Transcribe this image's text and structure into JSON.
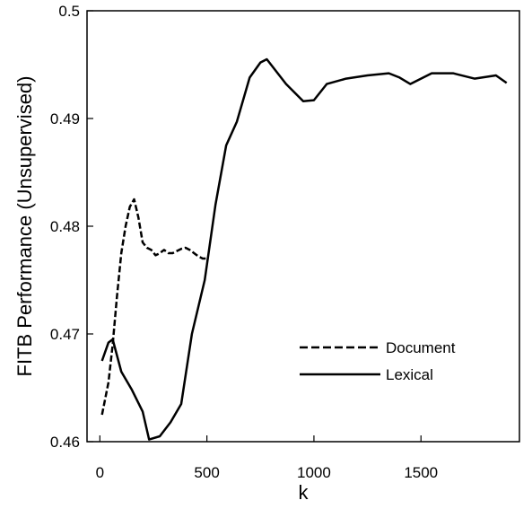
{
  "chart_data": {
    "type": "line",
    "title": "",
    "xlabel": "k",
    "ylabel": "FITB Performance (Unsupervised)",
    "xlim": [
      -60,
      1960
    ],
    "ylim": [
      0.46,
      0.5
    ],
    "x_ticks": [
      0,
      500,
      1000,
      1500
    ],
    "x_tick_labels": [
      "0",
      "500",
      "1000",
      "1500"
    ],
    "y_ticks": [
      0.46,
      0.47,
      0.48,
      0.49,
      0.5
    ],
    "y_tick_labels": [
      "0.46",
      "0.47",
      "0.48",
      "0.49",
      "0.5"
    ],
    "grid": false,
    "legend_position": "lower-right",
    "series": [
      {
        "name": "Document",
        "line_style": "dashed",
        "color": "#000000",
        "x": [
          10,
          25,
          40,
          60,
          80,
          100,
          120,
          140,
          160,
          180,
          200,
          220,
          240,
          260,
          280,
          300,
          320,
          340,
          360,
          380,
          400,
          420,
          440,
          460,
          480,
          500
        ],
        "y": [
          0.4625,
          0.464,
          0.4655,
          0.469,
          0.4735,
          0.4775,
          0.48,
          0.4818,
          0.4825,
          0.4808,
          0.4785,
          0.478,
          0.4778,
          0.4773,
          0.4775,
          0.4778,
          0.4775,
          0.4775,
          0.4777,
          0.4779,
          0.478,
          0.4778,
          0.4775,
          0.4772,
          0.477,
          0.477
        ]
      },
      {
        "name": "Lexical",
        "line_style": "solid",
        "color": "#000000",
        "x": [
          10,
          40,
          60,
          80,
          100,
          150,
          200,
          230,
          280,
          330,
          380,
          430,
          490,
          540,
          590,
          640,
          700,
          750,
          780,
          870,
          950,
          1000,
          1060,
          1150,
          1250,
          1350,
          1400,
          1450,
          1550,
          1650,
          1750,
          1850,
          1900
        ],
        "y": [
          0.4675,
          0.4692,
          0.4695,
          0.468,
          0.4665,
          0.4648,
          0.4628,
          0.4602,
          0.4605,
          0.4618,
          0.4635,
          0.47,
          0.475,
          0.482,
          0.4875,
          0.4897,
          0.4938,
          0.4952,
          0.4955,
          0.4932,
          0.4916,
          0.4917,
          0.4932,
          0.4937,
          0.494,
          0.4942,
          0.4938,
          0.4932,
          0.4942,
          0.4942,
          0.4937,
          0.494,
          0.4933
        ]
      }
    ]
  }
}
